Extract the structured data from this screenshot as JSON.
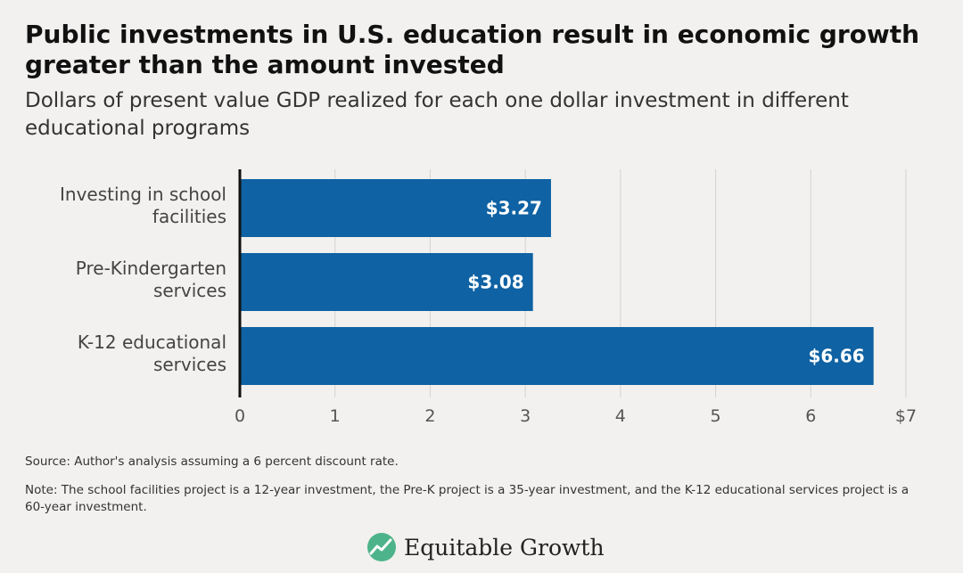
{
  "header": {
    "title": "Public investments in U.S. education result in economic growth greater than the amount invested",
    "subtitle": "Dollars of present value GDP realized for each one dollar investment in different educational programs"
  },
  "chart_data": {
    "type": "bar",
    "orientation": "horizontal",
    "categories": [
      [
        "Investing in school",
        "facilities"
      ],
      [
        "Pre-Kindergarten",
        "services"
      ],
      [
        "K-12 educational",
        "services"
      ]
    ],
    "values": [
      3.27,
      3.08,
      6.66
    ],
    "value_labels": [
      "$3.27",
      "$3.08",
      "$6.66"
    ],
    "xlim": [
      0,
      7
    ],
    "x_ticks": [
      0,
      1,
      2,
      3,
      4,
      5,
      6,
      7
    ],
    "x_tick_labels": [
      "0",
      "1",
      "2",
      "3",
      "4",
      "5",
      "6",
      "$7"
    ],
    "grid": "vertical",
    "bar_color": "#0f62a3"
  },
  "footer": {
    "source": "Source: Author's analysis assuming a 6 percent discount rate.",
    "note": "Note: The school facilities project is a 12-year investment, the Pre-K project is a 35-year investment, and the K-12 educational services project is a 60-year investment.",
    "logo_text": "Equitable Growth",
    "logo_icon": "growth-chart-icon",
    "logo_color": "#4db38a"
  }
}
